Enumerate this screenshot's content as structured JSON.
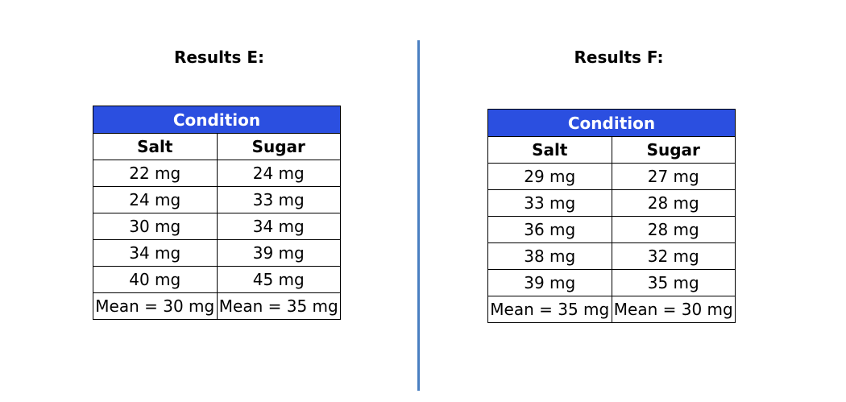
{
  "results_e": {
    "title": "Results E:",
    "condition_label": "Condition",
    "columns": [
      "Salt",
      "Sugar"
    ],
    "rows": [
      [
        "22 mg",
        "24 mg"
      ],
      [
        "24 mg",
        "33 mg"
      ],
      [
        "30 mg",
        "34 mg"
      ],
      [
        "34 mg",
        "39 mg"
      ],
      [
        "40 mg",
        "45 mg"
      ]
    ],
    "means": [
      "Mean = 30 mg",
      "Mean = 35 mg"
    ]
  },
  "results_f": {
    "title": "Results F:",
    "condition_label": "Condition",
    "columns": [
      "Salt",
      "Sugar"
    ],
    "rows": [
      [
        "29 mg",
        "27 mg"
      ],
      [
        "33 mg",
        "28 mg"
      ],
      [
        "36 mg",
        "28 mg"
      ],
      [
        "38 mg",
        "32 mg"
      ],
      [
        "39 mg",
        "35 mg"
      ]
    ],
    "means": [
      "Mean = 35 mg",
      "Mean = 30 mg"
    ]
  },
  "colors": {
    "header_bg": "#2b4fe0",
    "divider": "#4a7fc1"
  }
}
